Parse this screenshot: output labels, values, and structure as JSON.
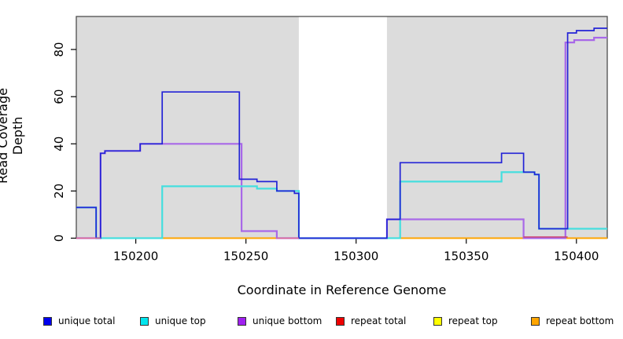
{
  "chart_data": {
    "type": "line",
    "variant": "step",
    "title": "",
    "xlabel": "Coordinate in Reference Genome",
    "ylabel": "Read Coverage Depth",
    "xlim": [
      150173,
      150414
    ],
    "ylim": [
      0,
      94
    ],
    "x_ticks": [
      150200,
      150250,
      150300,
      150350,
      150400
    ],
    "y_ticks": [
      0,
      20,
      40,
      60,
      80
    ],
    "grid": false,
    "plot_bg_color": "#dcdcdc",
    "border_color": "#4d4d4d",
    "masked_region": {
      "x0": 150274,
      "x1": 150314,
      "color": "#ffffff"
    },
    "series": [
      {
        "name": "repeat total",
        "color": "#ee0000",
        "lw": 1.5,
        "points": [
          [
            150173,
            0
          ]
        ]
      },
      {
        "name": "repeat top",
        "color": "#f5f500",
        "lw": 1.5,
        "points": [
          [
            150173,
            0
          ]
        ]
      },
      {
        "name": "repeat bottom",
        "color": "#ffa500",
        "lw": 2,
        "points": [
          [
            150173,
            0
          ]
        ]
      },
      {
        "name": "unique bottom",
        "color": "#a868e8",
        "lw": 2.2,
        "points": [
          [
            150173,
            0
          ],
          [
            150184,
            36
          ],
          [
            150186,
            37
          ],
          [
            150202,
            40
          ],
          [
            150248,
            3
          ],
          [
            150264,
            0
          ],
          [
            150314,
            8
          ],
          [
            150376,
            0
          ],
          [
            150395,
            83
          ],
          [
            150399,
            84
          ],
          [
            150408,
            85
          ]
        ]
      },
      {
        "name": "unique top",
        "color": "#45dede",
        "lw": 2.2,
        "points": [
          [
            150173,
            13
          ],
          [
            150182,
            0
          ],
          [
            150212,
            22
          ],
          [
            150255,
            21
          ],
          [
            150264,
            20
          ],
          [
            150274,
            0
          ],
          [
            150320,
            24
          ],
          [
            150366,
            28
          ],
          [
            150381,
            27
          ],
          [
            150383,
            4
          ]
        ]
      },
      {
        "name": "unique total",
        "color": "#2323d6",
        "lw": 1.7,
        "points": [
          [
            150173,
            13
          ],
          [
            150182,
            0
          ],
          [
            150184,
            36
          ],
          [
            150186,
            37
          ],
          [
            150202,
            40
          ],
          [
            150212,
            62
          ],
          [
            150247,
            25
          ],
          [
            150255,
            24
          ],
          [
            150264,
            20
          ],
          [
            150272,
            19
          ],
          [
            150274,
            0
          ],
          [
            150314,
            8
          ],
          [
            150320,
            32
          ],
          [
            150366,
            36
          ],
          [
            150376,
            28
          ],
          [
            150381,
            27
          ],
          [
            150383,
            4
          ],
          [
            150396,
            87
          ],
          [
            150400,
            88
          ],
          [
            150408,
            89
          ]
        ]
      }
    ],
    "zero_overlays": [
      {
        "x0": 150173,
        "x1": 150184,
        "y": 0,
        "color": "#e26d8e"
      },
      {
        "x0": 150264,
        "x1": 150274,
        "y": 0,
        "color": "#e26d8e"
      },
      {
        "x0": 150376,
        "x1": 150396,
        "y": 0.5,
        "color": "#cc4470"
      }
    ]
  },
  "legend": {
    "items": [
      {
        "label": "unique total",
        "color": "#0000ee"
      },
      {
        "label": "unique top",
        "color": "#00e5ee"
      },
      {
        "label": "unique bottom",
        "color": "#a020f0"
      },
      {
        "label": "repeat total",
        "color": "#ee0000"
      },
      {
        "label": "repeat top",
        "color": "#ffff00"
      },
      {
        "label": "repeat bottom",
        "color": "#ffa500"
      }
    ]
  }
}
